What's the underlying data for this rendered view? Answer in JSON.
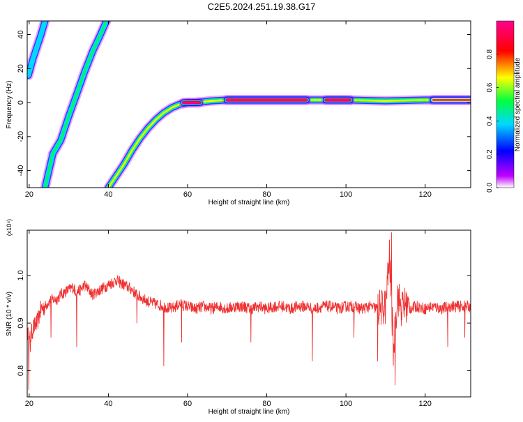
{
  "title": "C2E5.2024.251.19.38.G17",
  "chart_data": [
    {
      "type": "heatmap",
      "xlabel": "Height of straight line (km)",
      "ylabel": "Frequency (Hz)",
      "xlim": [
        19.5,
        131.5
      ],
      "ylim": [
        -50,
        48
      ],
      "xticks": [
        20,
        40,
        60,
        80,
        100,
        120
      ],
      "yticks": [
        -40,
        -20,
        0,
        20,
        40
      ],
      "colorbar": {
        "label": "Normalized spectral amplitude",
        "range": [
          0,
          1
        ],
        "ticks": [
          0.0,
          0.2,
          0.4,
          0.6,
          0.8
        ],
        "colors": [
          "#ffffff",
          "#c000ff",
          "#0000ff",
          "#00d8ff",
          "#00ff40",
          "#ffff00",
          "#ff0000",
          "#ff0090"
        ]
      },
      "tracks": [
        {
          "points": [
            [
              19.8,
              16
            ],
            [
              21,
              26
            ],
            [
              22,
              33
            ],
            [
              23,
              40
            ],
            [
              24,
              48
            ]
          ],
          "amplitude": 0.35
        },
        {
          "points": [
            [
              24,
              -50
            ],
            [
              25,
              -40
            ],
            [
              26,
              -30
            ],
            [
              28,
              -22
            ],
            [
              30,
              -8
            ],
            [
              32,
              5
            ],
            [
              34,
              18
            ],
            [
              36,
              30
            ],
            [
              38,
              40
            ],
            [
              39.5,
              48
            ]
          ],
          "amplitude": 0.45
        },
        {
          "points": [
            [
              40,
              -50
            ],
            [
              42,
              -43
            ],
            [
              44,
              -36
            ],
            [
              46,
              -28
            ],
            [
              48,
              -21
            ],
            [
              50,
              -15
            ],
            [
              52,
              -10
            ],
            [
              54,
              -6
            ],
            [
              56,
              -3
            ],
            [
              58,
              -1
            ],
            [
              60,
              0
            ],
            [
              62,
              0
            ],
            [
              66,
              1
            ],
            [
              70,
              1.5
            ],
            [
              80,
              1.5
            ],
            [
              90,
              1.5
            ],
            [
              100,
              1.5
            ],
            [
              110,
              1
            ],
            [
              120,
              1.5
            ],
            [
              131.5,
              1.5
            ]
          ],
          "amplitude": 0.6
        },
        {
          "points": [
            [
              59,
              0
            ],
            [
              63,
              0
            ]
          ],
          "amplitude": 0.95
        },
        {
          "points": [
            [
              70,
              1.5
            ],
            [
              90,
              1.5
            ]
          ],
          "amplitude": 0.95
        },
        {
          "points": [
            [
              95,
              1.5
            ],
            [
              101,
              1.5
            ]
          ],
          "amplitude": 0.95
        },
        {
          "points": [
            [
              122,
              1.5
            ],
            [
              131.5,
              1.5
            ]
          ],
          "amplitude": 0.85
        }
      ]
    },
    {
      "type": "line",
      "xlabel": "Height of straight line (km)",
      "ylabel": "SNR (10 * v/v)",
      "multiplier": "(x10⁴)",
      "xlim": [
        19.5,
        131.5
      ],
      "ylim": [
        0.745,
        1.095
      ],
      "xticks": [
        20,
        40,
        60,
        80,
        100,
        120
      ],
      "yticks": [
        0.8,
        0.9,
        1.0
      ],
      "color": "#f03030",
      "x": [
        19.6,
        20,
        21,
        22,
        23,
        24,
        25,
        26,
        27,
        28,
        29,
        30,
        31,
        32,
        33,
        34,
        35,
        36,
        37,
        38,
        39,
        40,
        41,
        42,
        43,
        44,
        45,
        46,
        47,
        48,
        49,
        50,
        52,
        54,
        56,
        58,
        60,
        62,
        64,
        66,
        68,
        70,
        72,
        74,
        76,
        78,
        80,
        82,
        84,
        86,
        88,
        90,
        92,
        94,
        96,
        98,
        100,
        102,
        104,
        106,
        108,
        110,
        111,
        112,
        113,
        114,
        115,
        116,
        118,
        120,
        122,
        124,
        126,
        128,
        130,
        131.5
      ],
      "y": [
        0.88,
        0.86,
        0.89,
        0.9,
        0.93,
        0.935,
        0.945,
        0.95,
        0.95,
        0.96,
        0.965,
        0.97,
        0.975,
        0.965,
        0.97,
        0.98,
        0.97,
        0.96,
        0.965,
        0.97,
        0.975,
        0.98,
        0.985,
        0.99,
        0.985,
        0.98,
        0.975,
        0.97,
        0.96,
        0.955,
        0.95,
        0.945,
        0.94,
        0.935,
        0.93,
        0.94,
        0.935,
        0.93,
        0.935,
        0.93,
        0.935,
        0.93,
        0.935,
        0.935,
        0.93,
        0.935,
        0.93,
        0.935,
        0.935,
        0.93,
        0.935,
        0.935,
        0.93,
        0.935,
        0.935,
        0.93,
        0.935,
        0.935,
        0.93,
        0.935,
        0.93,
        0.935,
        1.04,
        0.84,
        0.96,
        0.93,
        0.94,
        0.93,
        0.935,
        0.93,
        0.935,
        0.93,
        0.935,
        0.935,
        0.935,
        0.935
      ],
      "spikes": [
        [
          19.9,
          0.76
        ],
        [
          20.3,
          0.84
        ],
        [
          25.5,
          0.87
        ],
        [
          32,
          0.85
        ],
        [
          47.2,
          0.9
        ],
        [
          54,
          0.81
        ],
        [
          58.5,
          0.86
        ],
        [
          76,
          0.86
        ],
        [
          91.5,
          0.82
        ],
        [
          102,
          0.87
        ],
        [
          108,
          0.82
        ],
        [
          111.5,
          1.09
        ],
        [
          112.4,
          0.77
        ],
        [
          125.7,
          0.85
        ],
        [
          130,
          0.87
        ]
      ]
    }
  ]
}
